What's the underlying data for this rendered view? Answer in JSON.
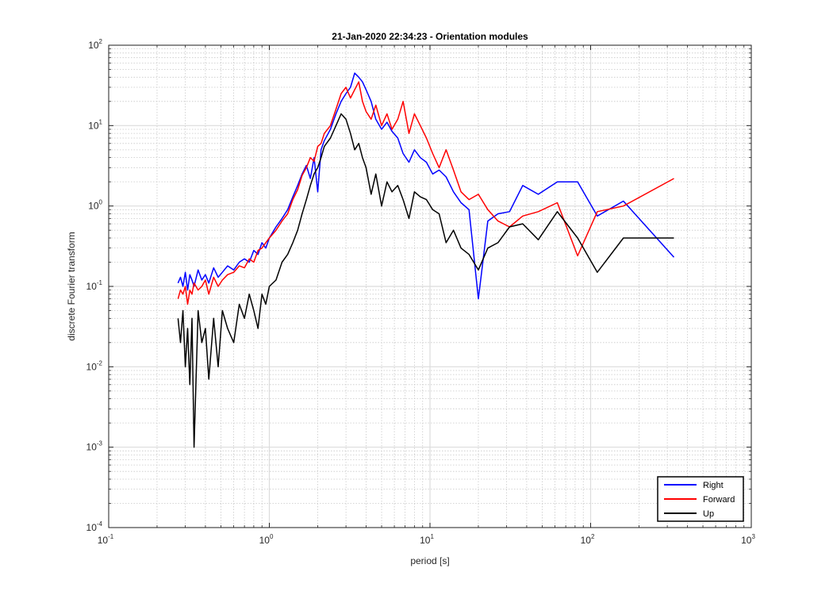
{
  "figure": {
    "title": "21-Jan-2020 22:34:23 - Orientation modules",
    "xlabel": "period [s]",
    "ylabel": "discrete Fourier transform"
  },
  "colors": {
    "Right": "#0000ff",
    "Forward": "#ff0000",
    "Up": "#000000",
    "grid": "#dcdcdc",
    "axis": "#262626"
  },
  "chart_data": {
    "type": "line",
    "title": "21-Jan-2020 22:34:23 - Orientation modules",
    "xlabel": "period [s]",
    "ylabel": "discrete Fourier transform",
    "xscale": "log",
    "yscale": "log",
    "xlim": [
      0.1,
      1000
    ],
    "ylim": [
      0.0001,
      100
    ],
    "xticks": [
      {
        "base": "10",
        "exp": "-1"
      },
      {
        "base": "10",
        "exp": "0"
      },
      {
        "base": "10",
        "exp": "1"
      },
      {
        "base": "10",
        "exp": "2"
      },
      {
        "base": "10",
        "exp": "3"
      }
    ],
    "yticks": [
      {
        "base": "10",
        "exp": "-4"
      },
      {
        "base": "10",
        "exp": "-3"
      },
      {
        "base": "10",
        "exp": "-2"
      },
      {
        "base": "10",
        "exp": "-1"
      },
      {
        "base": "10",
        "exp": "0"
      },
      {
        "base": "10",
        "exp": "1"
      },
      {
        "base": "10",
        "exp": "2"
      }
    ],
    "grid": "major and minor",
    "legend_position": "bottom-right",
    "series": [
      {
        "name": "Right",
        "x": [
          0.27,
          0.28,
          0.29,
          0.3,
          0.31,
          0.32,
          0.33,
          0.34,
          0.36,
          0.38,
          0.4,
          0.42,
          0.45,
          0.48,
          0.51,
          0.55,
          0.6,
          0.65,
          0.7,
          0.75,
          0.8,
          0.85,
          0.9,
          0.95,
          1.0,
          1.1,
          1.2,
          1.3,
          1.4,
          1.5,
          1.6,
          1.7,
          1.8,
          1.9,
          2.0,
          2.1,
          2.2,
          2.4,
          2.6,
          2.8,
          3.0,
          3.2,
          3.4,
          3.6,
          3.8,
          4.0,
          4.3,
          4.6,
          5.0,
          5.4,
          5.8,
          6.3,
          6.8,
          7.4,
          8.0,
          8.7,
          9.5,
          10.4,
          11.4,
          12.6,
          14.0,
          15.6,
          17.5,
          20.0,
          22.9,
          26.5,
          31.3,
          37.8,
          47.2,
          62.0,
          83.0,
          110.0,
          160.0,
          330.0
        ],
        "y": [
          0.11,
          0.13,
          0.1,
          0.15,
          0.09,
          0.14,
          0.12,
          0.1,
          0.16,
          0.12,
          0.14,
          0.11,
          0.17,
          0.13,
          0.15,
          0.18,
          0.16,
          0.2,
          0.22,
          0.2,
          0.28,
          0.25,
          0.35,
          0.3,
          0.4,
          0.55,
          0.7,
          0.9,
          1.3,
          1.8,
          2.5,
          3.2,
          2.2,
          4.0,
          1.5,
          5.0,
          6.5,
          9.0,
          14.0,
          20.0,
          25.0,
          30.0,
          45.0,
          40.0,
          35.0,
          28.0,
          20.0,
          12.0,
          9.0,
          11.0,
          8.5,
          7.0,
          4.5,
          3.5,
          5.0,
          4.0,
          3.5,
          2.5,
          2.8,
          2.3,
          1.5,
          1.1,
          0.9,
          0.07,
          0.65,
          0.8,
          0.85,
          1.8,
          1.4,
          2.0,
          2.0,
          0.75,
          1.15,
          0.23
        ]
      },
      {
        "name": "Forward",
        "x": [
          0.27,
          0.28,
          0.29,
          0.3,
          0.31,
          0.32,
          0.33,
          0.34,
          0.36,
          0.38,
          0.4,
          0.42,
          0.45,
          0.48,
          0.51,
          0.55,
          0.6,
          0.65,
          0.7,
          0.75,
          0.8,
          0.85,
          0.9,
          0.95,
          1.0,
          1.1,
          1.2,
          1.3,
          1.4,
          1.5,
          1.6,
          1.7,
          1.8,
          1.9,
          2.0,
          2.1,
          2.2,
          2.4,
          2.6,
          2.8,
          3.0,
          3.2,
          3.4,
          3.6,
          3.8,
          4.0,
          4.3,
          4.6,
          5.0,
          5.4,
          5.8,
          6.3,
          6.8,
          7.4,
          8.0,
          8.7,
          9.5,
          10.4,
          11.4,
          12.6,
          14.0,
          15.6,
          17.5,
          20.0,
          22.9,
          26.5,
          31.3,
          37.8,
          47.2,
          62.0,
          83.0,
          110.0,
          160.0,
          330.0
        ],
        "y": [
          0.07,
          0.09,
          0.08,
          0.1,
          0.06,
          0.09,
          0.08,
          0.11,
          0.09,
          0.1,
          0.12,
          0.08,
          0.13,
          0.1,
          0.12,
          0.14,
          0.15,
          0.18,
          0.17,
          0.22,
          0.2,
          0.28,
          0.3,
          0.35,
          0.4,
          0.5,
          0.65,
          0.8,
          1.2,
          1.6,
          2.4,
          3.0,
          4.0,
          3.6,
          5.5,
          6.0,
          8.0,
          10.0,
          16.0,
          25.0,
          30.0,
          22.0,
          28.0,
          35.0,
          20.0,
          15.0,
          12.0,
          18.0,
          10.0,
          14.0,
          9.0,
          12.0,
          20.0,
          8.0,
          14.0,
          10.0,
          7.0,
          4.5,
          3.0,
          5.0,
          2.8,
          1.5,
          1.2,
          1.4,
          0.9,
          0.65,
          0.55,
          0.75,
          0.85,
          1.1,
          0.24,
          0.85,
          1.0,
          2.2
        ]
      },
      {
        "name": "Up",
        "x": [
          0.27,
          0.28,
          0.29,
          0.3,
          0.31,
          0.32,
          0.33,
          0.34,
          0.36,
          0.38,
          0.4,
          0.42,
          0.45,
          0.48,
          0.51,
          0.55,
          0.6,
          0.65,
          0.7,
          0.75,
          0.8,
          0.85,
          0.9,
          0.95,
          1.0,
          1.1,
          1.2,
          1.3,
          1.4,
          1.5,
          1.6,
          1.7,
          1.8,
          1.9,
          2.0,
          2.1,
          2.2,
          2.4,
          2.6,
          2.8,
          3.0,
          3.2,
          3.4,
          3.6,
          3.8,
          4.0,
          4.3,
          4.6,
          5.0,
          5.4,
          5.8,
          6.3,
          6.8,
          7.4,
          8.0,
          8.7,
          9.5,
          10.4,
          11.4,
          12.6,
          14.0,
          15.6,
          17.5,
          20.0,
          22.9,
          26.5,
          31.3,
          37.8,
          47.2,
          62.0,
          83.0,
          110.0,
          160.0,
          330.0
        ],
        "y": [
          0.04,
          0.02,
          0.05,
          0.01,
          0.03,
          0.006,
          0.04,
          0.001,
          0.05,
          0.02,
          0.03,
          0.007,
          0.04,
          0.01,
          0.05,
          0.03,
          0.02,
          0.06,
          0.04,
          0.08,
          0.05,
          0.03,
          0.08,
          0.06,
          0.1,
          0.12,
          0.2,
          0.25,
          0.35,
          0.5,
          0.8,
          1.2,
          1.8,
          2.5,
          3.0,
          4.0,
          5.5,
          7.0,
          10.0,
          14.0,
          12.0,
          8.0,
          5.0,
          6.0,
          4.0,
          3.0,
          1.4,
          2.5,
          1.0,
          2.0,
          1.5,
          1.8,
          1.2,
          0.7,
          1.5,
          1.3,
          1.2,
          0.9,
          0.8,
          0.35,
          0.5,
          0.3,
          0.25,
          0.16,
          0.3,
          0.35,
          0.55,
          0.6,
          0.38,
          0.85,
          0.4,
          0.15,
          0.4,
          0.4
        ]
      }
    ]
  }
}
